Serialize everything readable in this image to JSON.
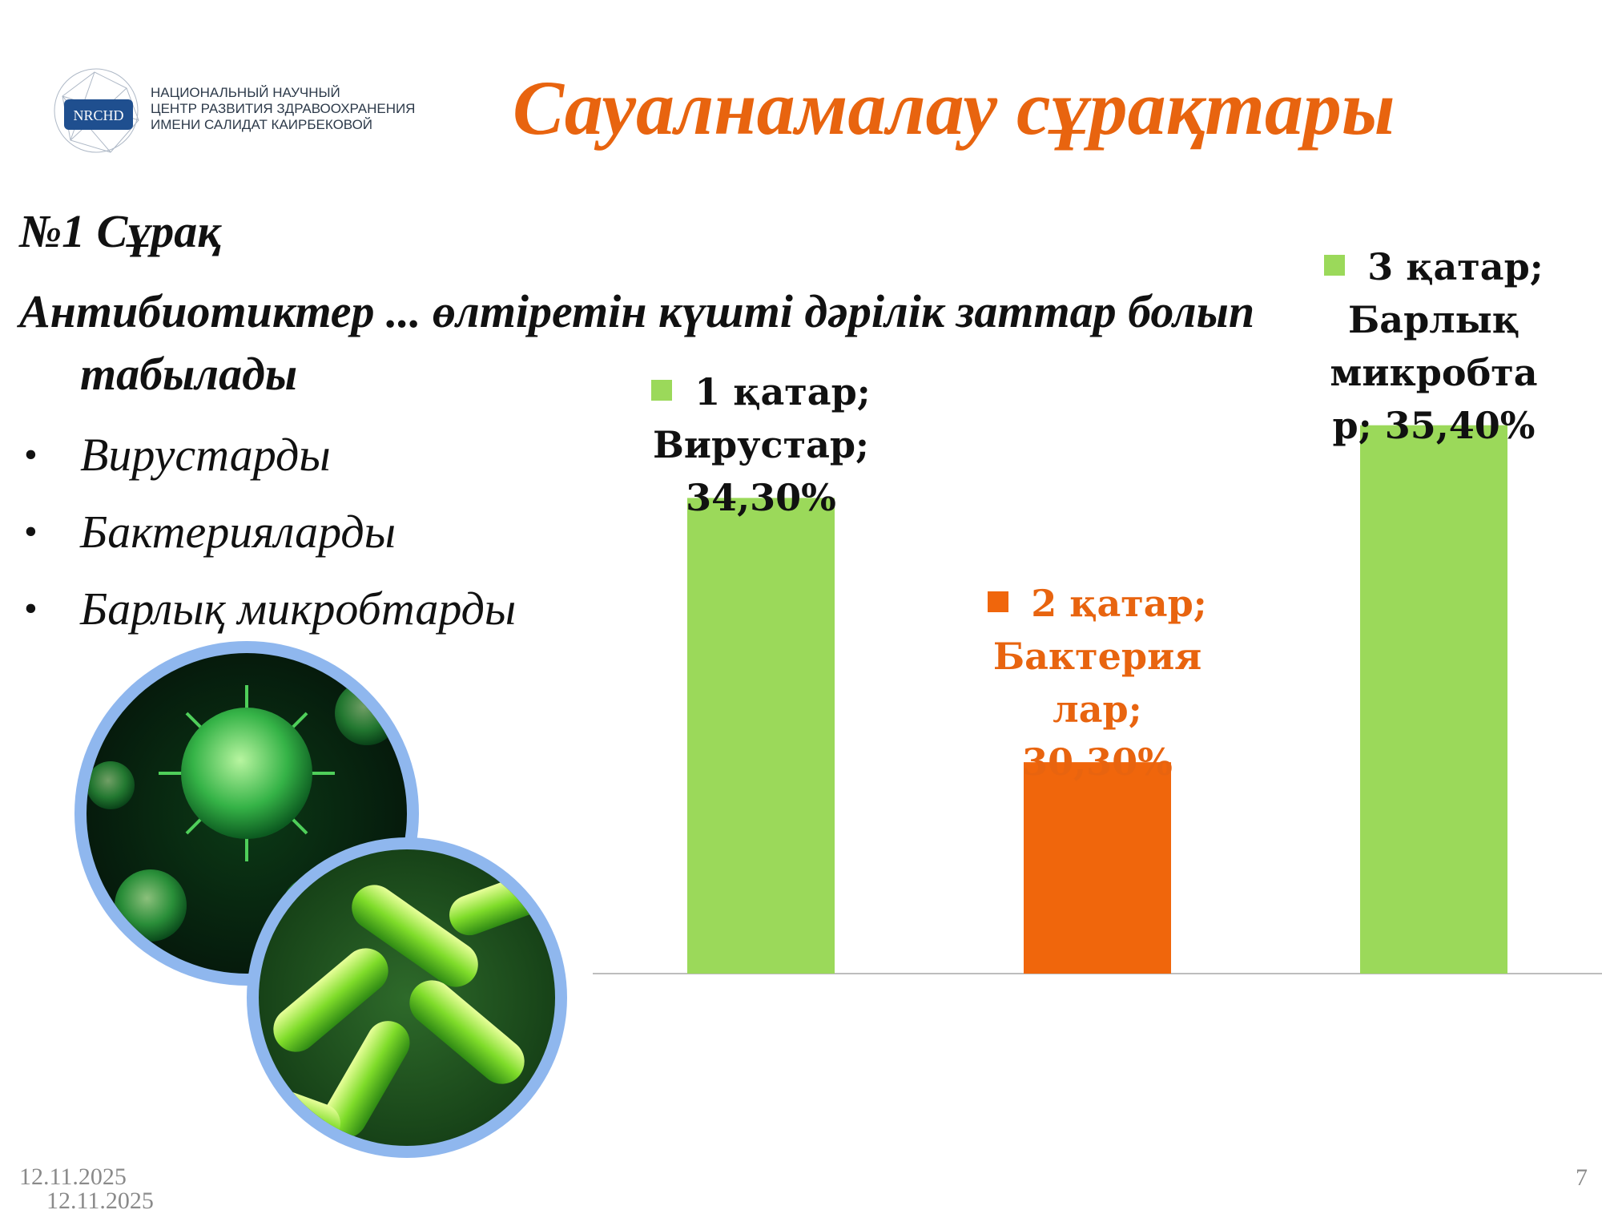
{
  "logo": {
    "mark_text": "NRCHD",
    "lines": [
      "НАЦИОНАЛЬНЫЙ НАУЧНЫЙ",
      "ЦЕНТР РАЗВИТИЯ ЗДРАВООХРАНЕНИЯ",
      "ИМЕНИ САЛИДАТ КАИРБЕКОВОЙ"
    ]
  },
  "title": "Сауалнамалау сұрақтары",
  "question": {
    "number": "№1 Сұрақ",
    "line1": "Антибиотиктер ... өлтіретін күшті дәрілік заттар болып",
    "line2": "табылады",
    "bullet": "•",
    "options": [
      "Вирустарды",
      "Бактерияларды",
      "Барлық микробтарды"
    ]
  },
  "colors": {
    "accent": "#e8640f",
    "green_bar": "#9bd95a",
    "orange_bar": "#f0660c",
    "axis": "#bdbdbd"
  },
  "chart_data": {
    "type": "bar",
    "title": "",
    "xlabel": "",
    "ylabel": "",
    "categories": [
      "Вирустар",
      "Бактериялар",
      "Барлық микробтар"
    ],
    "series": [
      {
        "name": "1 қатар",
        "values": [
          34.3,
          null,
          null
        ],
        "color": "#9bd95a"
      },
      {
        "name": "2 қатар",
        "values": [
          null,
          30.3,
          null
        ],
        "color": "#f0660c"
      },
      {
        "name": "3 қатар",
        "values": [
          null,
          null,
          35.4
        ],
        "color": "#9bd95a"
      }
    ],
    "ylim": [
      27.1,
      36.5
    ],
    "grid": false,
    "legend": "none",
    "data_labels": [
      {
        "lines": [
          "1 қатар;",
          "Вирустар;",
          "34,30%"
        ],
        "color": "#111111",
        "swatch": "#9bd95a"
      },
      {
        "lines": [
          "2 қатар;",
          "Бактерия",
          "лар;",
          "30,30%"
        ],
        "color": "#e8640f",
        "swatch": "#f0660c"
      },
      {
        "lines": [
          "3 қатар;",
          "Барлық",
          "микробта",
          "р; 35,40%"
        ],
        "color": "#111111",
        "swatch": "#9bd95a"
      }
    ]
  },
  "footer": {
    "dates": [
      "12.11.2025",
      "12.11.2025"
    ],
    "page": "7"
  }
}
